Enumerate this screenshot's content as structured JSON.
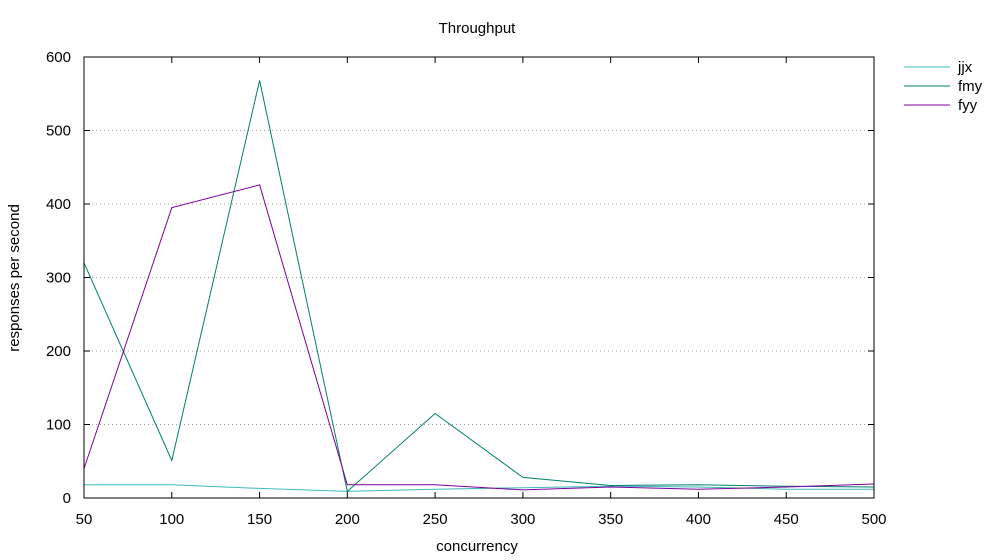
{
  "chart_data": {
    "type": "line",
    "title": "Throughput",
    "xlabel": "concurrency",
    "ylabel": "responses per second",
    "x": [
      50,
      100,
      150,
      200,
      250,
      300,
      350,
      400,
      450,
      500
    ],
    "xlim": [
      50,
      500
    ],
    "ylim": [
      0,
      600
    ],
    "x_ticks": [
      50,
      100,
      150,
      200,
      250,
      300,
      350,
      400,
      450,
      500
    ],
    "y_ticks": [
      0,
      100,
      200,
      300,
      400,
      500,
      600
    ],
    "grid": "horizontal dotted",
    "legend_position": "top-right, outside plot",
    "series": [
      {
        "name": "jjx",
        "color": "#3fb9b9",
        "values": [
          18,
          18,
          13,
          9,
          12,
          14,
          16,
          15,
          12,
          12
        ]
      },
      {
        "name": "fmy",
        "color": "#00806e",
        "values": [
          320,
          51,
          568,
          9,
          115,
          28,
          17,
          18,
          16,
          15
        ]
      },
      {
        "name": "fyy",
        "color": "#8000a0",
        "values": [
          40,
          395,
          426,
          18,
          18,
          11,
          15,
          12,
          15,
          19
        ]
      }
    ]
  }
}
